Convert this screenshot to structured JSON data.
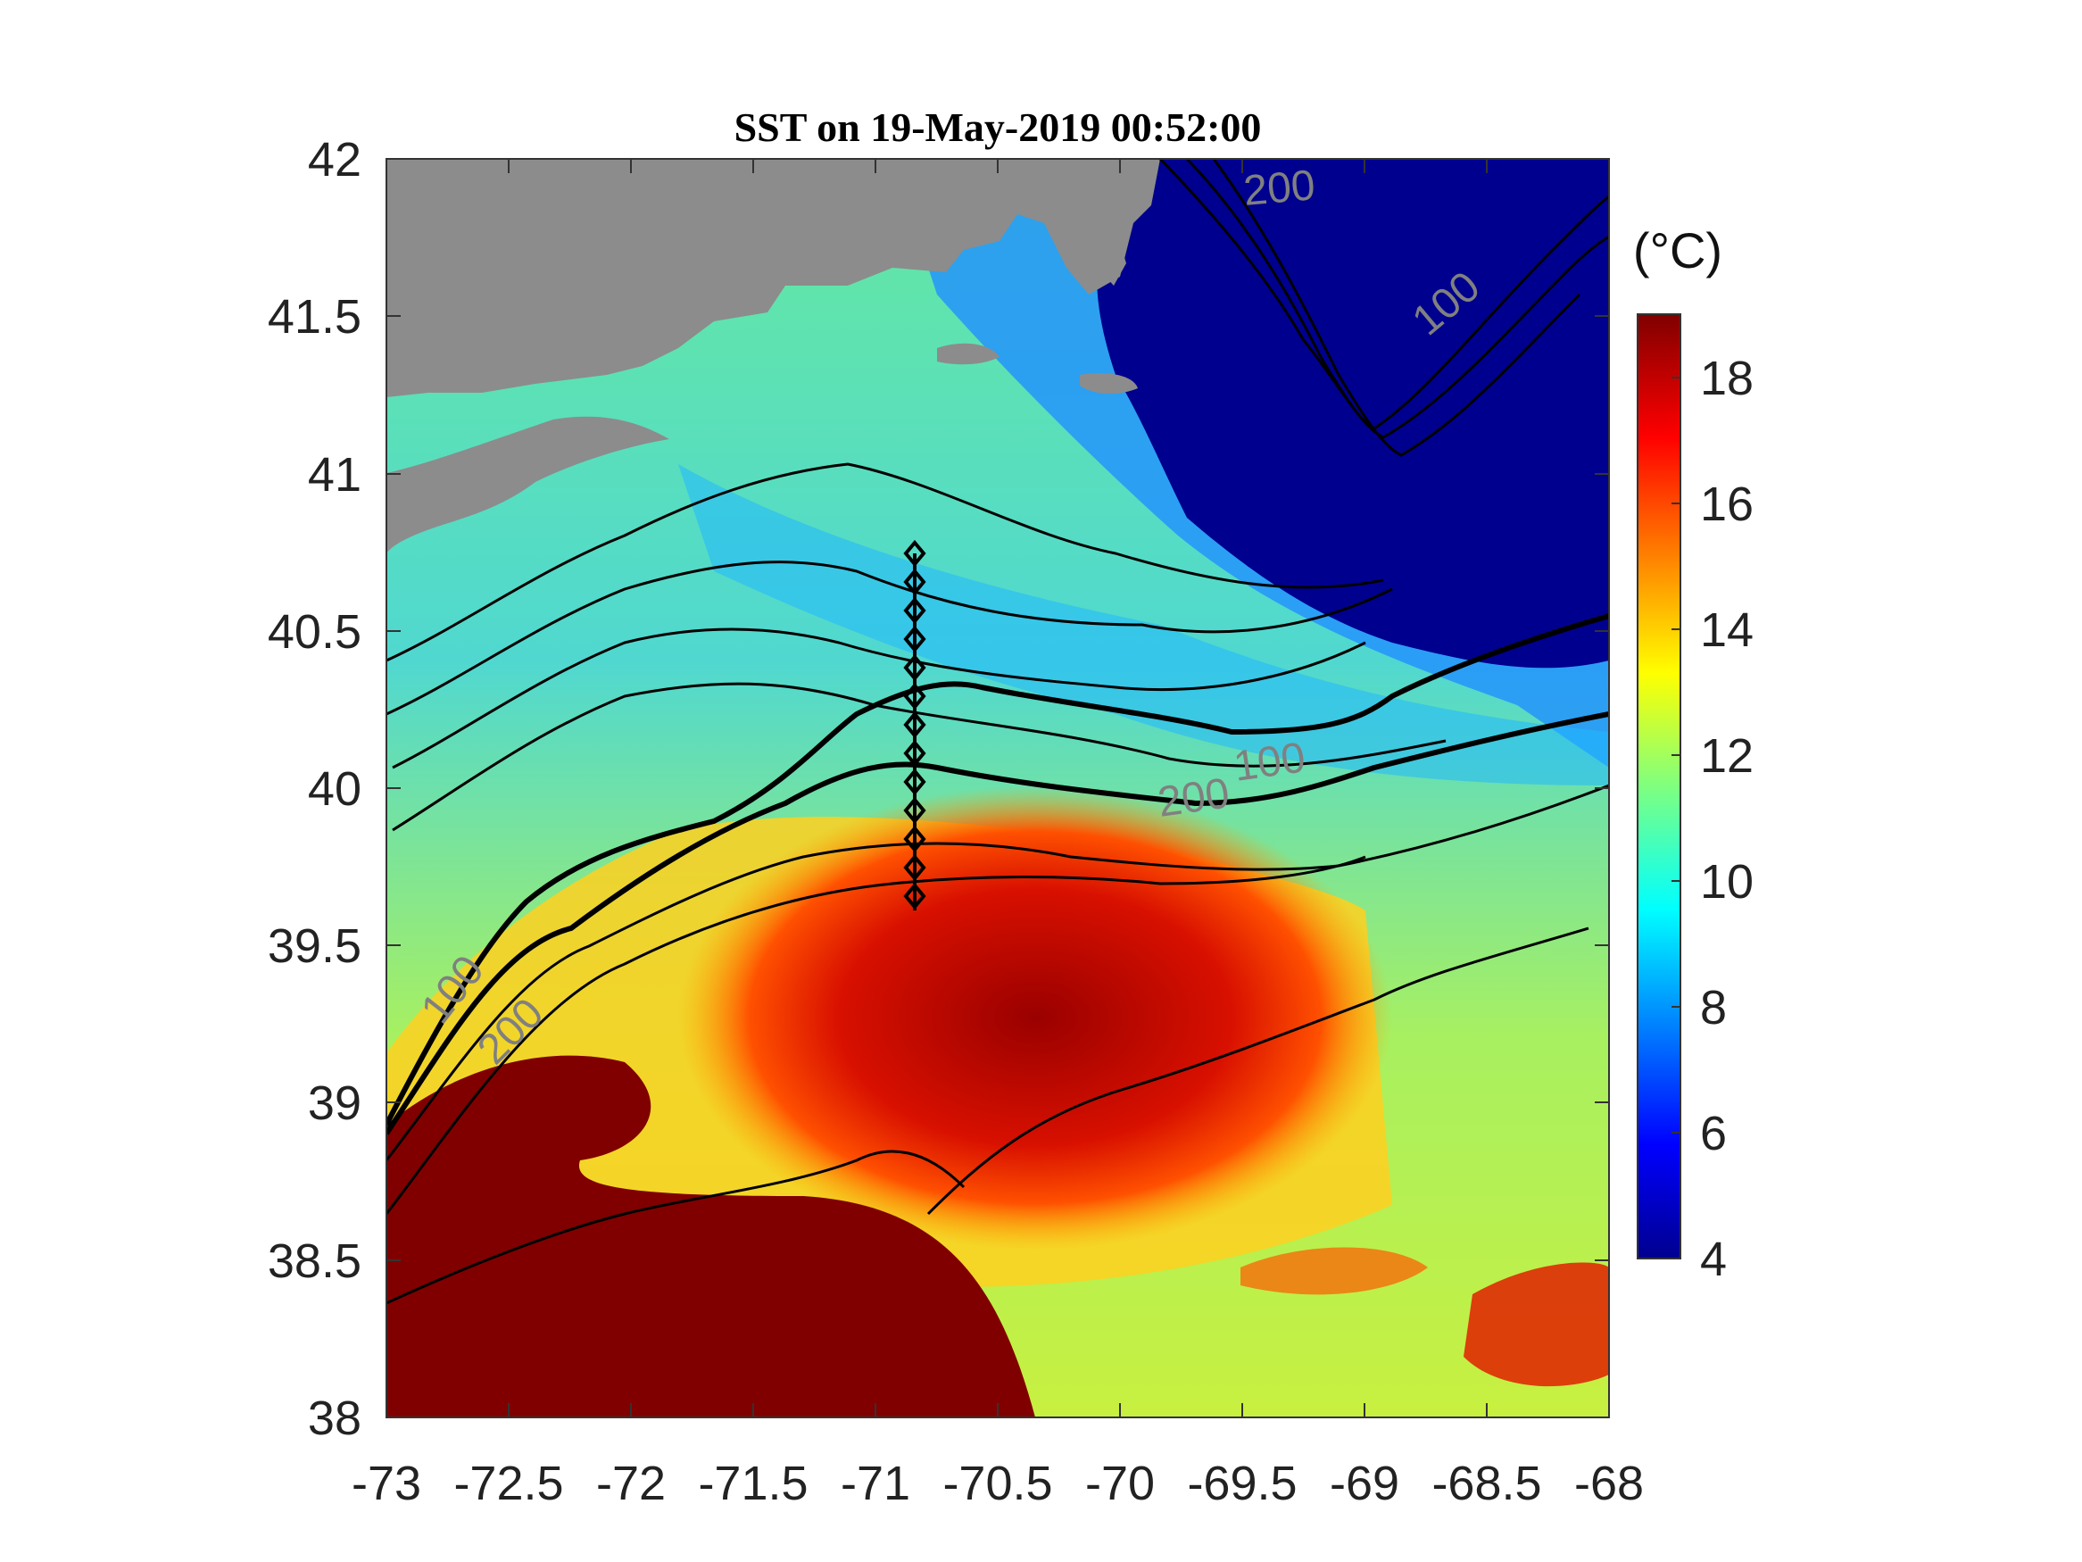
{
  "title": "SST on 19-May-2019 00:52:00",
  "x_ticks": [
    "-73",
    "-72.5",
    "-72",
    "-71.5",
    "-71",
    "-70.5",
    "-70",
    "-69.5",
    "-69",
    "-68.5",
    "-68"
  ],
  "y_ticks": [
    "38",
    "38.5",
    "39",
    "39.5",
    "40",
    "40.5",
    "41",
    "41.5",
    "42"
  ],
  "colorbar": {
    "unit": "(°C)",
    "range": [
      4,
      19
    ],
    "ticks": [
      "4",
      "6",
      "8",
      "10",
      "12",
      "14",
      "16",
      "18"
    ]
  },
  "contour_labels": [
    "200",
    "100",
    "100",
    "200",
    "100",
    "200"
  ],
  "map_extent": {
    "lon": [
      -73,
      -68
    ],
    "lat": [
      38,
      42
    ]
  },
  "colors": {
    "land": "#8c8c8c",
    "cold": "#00008f",
    "warm": "#7f0000",
    "contour": "#000000",
    "contour_label": "#808080"
  }
}
